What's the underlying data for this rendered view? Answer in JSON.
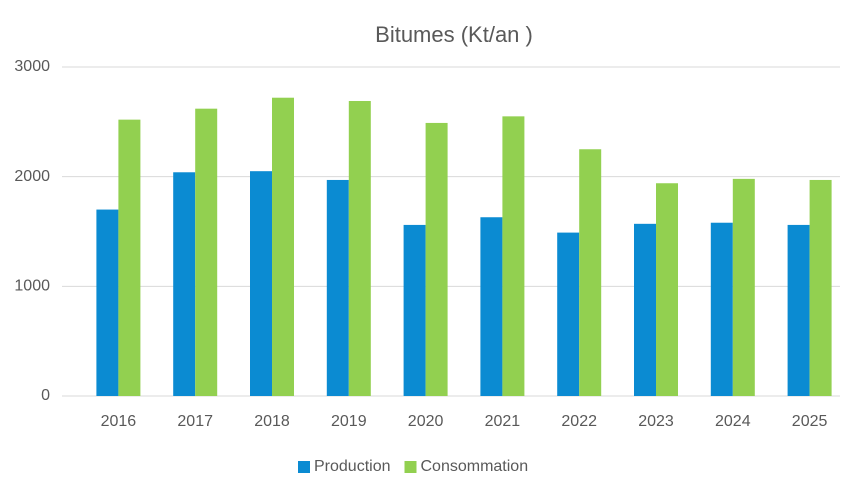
{
  "chart_data": {
    "type": "bar",
    "title": "Bitumes (Kt/an )",
    "categories": [
      "2016",
      "2017",
      "2018",
      "2019",
      "2020",
      "2021",
      "2022",
      "2023",
      "2024",
      "2025"
    ],
    "series": [
      {
        "name": "Production",
        "color": "#0b8bd2",
        "values": [
          1700,
          2040,
          2050,
          1970,
          1560,
          1630,
          1490,
          1570,
          1580,
          1560
        ]
      },
      {
        "name": "Consommation",
        "color": "#92d050",
        "values": [
          2520,
          2620,
          2720,
          2690,
          2490,
          2550,
          2250,
          1940,
          1980,
          1970
        ]
      }
    ],
    "ylim": [
      0,
      3000
    ],
    "yticks": [
      0,
      1000,
      2000,
      3000
    ],
    "grid": true,
    "legend": "bottom"
  }
}
